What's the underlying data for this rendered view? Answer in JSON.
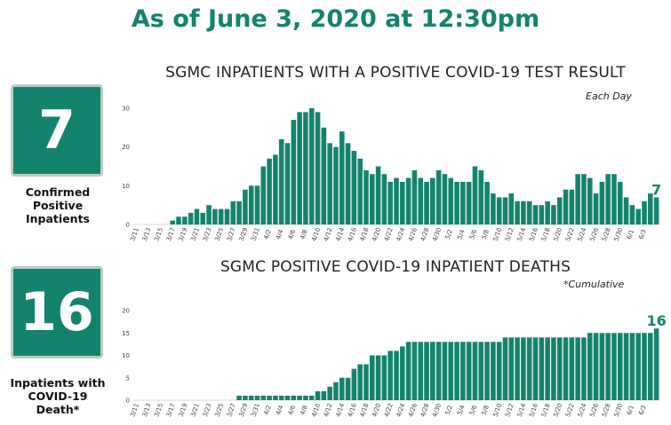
{
  "headline": "As of June 3, 2020 at 12:30pm",
  "colors": {
    "accent": "#14836e",
    "box_border": "#b8cfc7"
  },
  "stats": [
    {
      "value": "7",
      "label": [
        "Confirmed",
        "Positive",
        "Inpatients"
      ]
    },
    {
      "value": "16",
      "label": [
        "Inpatients with",
        "COVID-19",
        "Death*"
      ]
    }
  ],
  "chart_data": [
    {
      "type": "bar",
      "title": "SGMC INPATIENTS WITH A POSITIVE COVID-19 TEST RESULT",
      "note": "Each Day",
      "ylim": [
        0,
        30
      ],
      "yticks": [
        "0",
        "10",
        "20",
        "30"
      ],
      "last_label": "7",
      "tick_labels": [
        "3/11",
        "3/13",
        "3/15",
        "3/17",
        "3/19",
        "3/21",
        "3/23",
        "3/25",
        "3/27",
        "3/29",
        "3/31",
        "4/2",
        "4/4",
        "4/6",
        "4/8",
        "4/10",
        "4/12",
        "4/14",
        "4/16",
        "4/18",
        "4/20",
        "4/22",
        "4/24",
        "4/26",
        "4/28",
        "4/30",
        "5/2",
        "5/4",
        "5/6",
        "5/8",
        "5/10",
        "5/12",
        "5/14",
        "5/16",
        "5/18",
        "5/20",
        "5/22",
        "5/24",
        "5/26",
        "5/28",
        "5/30",
        "6/1",
        "6/3"
      ],
      "values": [
        0,
        0,
        0,
        0,
        0,
        0,
        1,
        2,
        2,
        3,
        4,
        3,
        5,
        4,
        4,
        4,
        6,
        6,
        9,
        10,
        10,
        15,
        17,
        18,
        22,
        21,
        27,
        29,
        29,
        30,
        29,
        25,
        21,
        20,
        24,
        21,
        19,
        17,
        14,
        13,
        15,
        13,
        11,
        12,
        11,
        12,
        14,
        12,
        11,
        12,
        14,
        13,
        12,
        11,
        11,
        11,
        15,
        14,
        11,
        8,
        7,
        7,
        8,
        6,
        6,
        6,
        5,
        5,
        6,
        5,
        7,
        9,
        9,
        13,
        13,
        12,
        8,
        11,
        13,
        13,
        11,
        7,
        5,
        4,
        6,
        8,
        7
      ]
    },
    {
      "type": "bar",
      "title": "SGMC POSITIVE COVID-19 INPATIENT DEATHS",
      "note": "*Cumulative",
      "ylim": [
        0,
        20
      ],
      "yticks": [
        "0",
        "5",
        "10",
        "15",
        "20"
      ],
      "last_label": "16",
      "tick_labels": [
        "3/11",
        "3/13",
        "3/15",
        "3/17",
        "3/19",
        "3/21",
        "3/23",
        "3/25",
        "3/27",
        "3/29",
        "3/31",
        "4/2",
        "4/4",
        "4/6",
        "4/8",
        "4/10",
        "4/12",
        "4/14",
        "4/16",
        "4/18",
        "4/20",
        "4/22",
        "4/24",
        "4/26",
        "4/28",
        "4/30",
        "5/2",
        "5/4",
        "5/6",
        "5/8",
        "5/10",
        "5/12",
        "5/14",
        "5/16",
        "5/18",
        "5/20",
        "5/22",
        "5/24",
        "5/26",
        "5/28",
        "5/30",
        "6/1",
        "6/3"
      ],
      "values": [
        0,
        0,
        0,
        0,
        0,
        0,
        0,
        0,
        0,
        0,
        0,
        0,
        0,
        0,
        0,
        0,
        0,
        1,
        1,
        1,
        1,
        1,
        1,
        1,
        1,
        1,
        1,
        1,
        1,
        1,
        2,
        2,
        3,
        4,
        5,
        5,
        7,
        8,
        8,
        10,
        10,
        10,
        11,
        11,
        12,
        13,
        13,
        13,
        13,
        13,
        13,
        13,
        13,
        13,
        13,
        13,
        13,
        13,
        13,
        13,
        13,
        14,
        14,
        14,
        14,
        14,
        14,
        14,
        14,
        14,
        14,
        14,
        14,
        14,
        14,
        15,
        15,
        15,
        15,
        15,
        15,
        15,
        15,
        15,
        15,
        15,
        16
      ]
    }
  ]
}
